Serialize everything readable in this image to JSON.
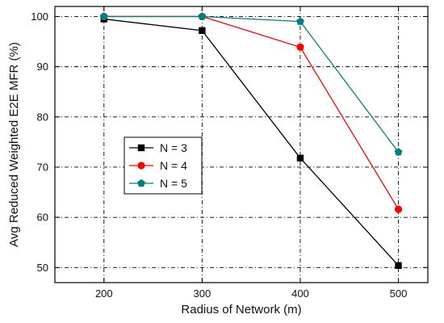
{
  "chart_data": {
    "type": "line",
    "xlabel": "Radius of Network (m)",
    "ylabel": "Avg Reduced Weighted E2E MFR (%)",
    "x": [
      200,
      300,
      400,
      500
    ],
    "xlim": [
      150,
      530
    ],
    "ylim": [
      47,
      102
    ],
    "xticks": [
      200,
      300,
      400,
      500
    ],
    "yticks": [
      50,
      60,
      70,
      80,
      90,
      100
    ],
    "grid": true,
    "legend_position": "center-left",
    "series": [
      {
        "name": "N = 3",
        "color": "#000000",
        "marker": "square",
        "values": [
          99.5,
          97.2,
          71.8,
          50.4
        ]
      },
      {
        "name": "N = 4",
        "color": "#ff0000",
        "marker": "circle",
        "values": [
          100.0,
          100.0,
          93.9,
          61.6
        ]
      },
      {
        "name": "N = 5",
        "color": "#008080",
        "marker": "pentagon",
        "values": [
          100.0,
          100.0,
          99.0,
          73.0
        ]
      }
    ]
  }
}
